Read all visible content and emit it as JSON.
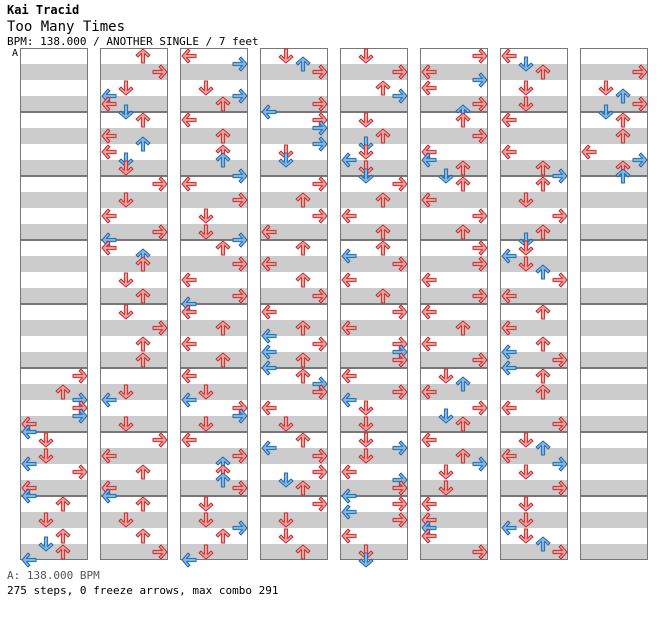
{
  "song": {
    "artist": "Kai Tracid",
    "title": "Too Many Times",
    "info": "BPM: 138.000 / ANOTHER SINGLE / 7 feet",
    "marker": "A"
  },
  "chart_data": {
    "type": "step-chart",
    "columns": 8,
    "measures_per_column": 8,
    "lanes": [
      "left",
      "down",
      "up",
      "right"
    ],
    "colors": {
      "quarter": "#f29c9c",
      "eighth": "#7ab8ea",
      "outline_red": "#c03333",
      "outline_blue": "#2a6aa8"
    },
    "note_count": 275
  },
  "footer": {
    "bpm_line": "A: 138.000 BPM",
    "stats": "275 steps, 0 freeze arrows, max combo 291"
  }
}
